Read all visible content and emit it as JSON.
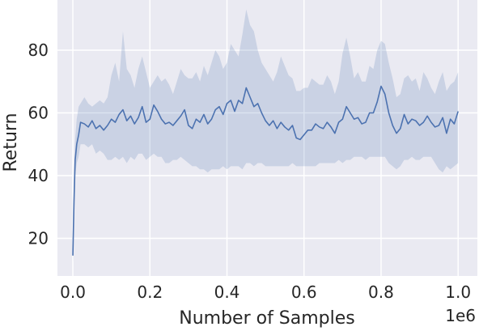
{
  "chart_data": {
    "type": "line",
    "xlabel": "Number of Samples",
    "ylabel": "Return",
    "x_offset_label": "1e6",
    "xlim": [
      -0.04,
      1.05
    ],
    "ylim": [
      8,
      96
    ],
    "xticks": [
      0.0,
      0.2,
      0.4,
      0.6,
      0.8,
      1.0
    ],
    "xtick_labels": [
      "0.0",
      "0.2",
      "0.4",
      "0.6",
      "0.8",
      "1.0"
    ],
    "yticks": [
      20,
      40,
      60,
      80
    ],
    "ytick_labels": [
      "20",
      "40",
      "60",
      "80"
    ],
    "grid": true,
    "background": "#eaeaf2",
    "line_color": "#4c72b0",
    "band_color": "#4c72b0",
    "series": [
      {
        "x": [
          0.0,
          0.003,
          0.006,
          0.01,
          0.015,
          0.02,
          0.03,
          0.04,
          0.05,
          0.06,
          0.07,
          0.08,
          0.09,
          0.1,
          0.11,
          0.12,
          0.13,
          0.14,
          0.15,
          0.16,
          0.17,
          0.18,
          0.19,
          0.2,
          0.21,
          0.22,
          0.23,
          0.24,
          0.25,
          0.26,
          0.27,
          0.28,
          0.29,
          0.3,
          0.31,
          0.32,
          0.33,
          0.34,
          0.35,
          0.36,
          0.37,
          0.38,
          0.39,
          0.4,
          0.41,
          0.42,
          0.43,
          0.44,
          0.45,
          0.46,
          0.47,
          0.48,
          0.49,
          0.5,
          0.51,
          0.52,
          0.53,
          0.54,
          0.55,
          0.56,
          0.57,
          0.58,
          0.59,
          0.6,
          0.61,
          0.62,
          0.63,
          0.64,
          0.65,
          0.66,
          0.67,
          0.68,
          0.69,
          0.7,
          0.71,
          0.72,
          0.73,
          0.74,
          0.75,
          0.76,
          0.77,
          0.78,
          0.79,
          0.8,
          0.81,
          0.82,
          0.83,
          0.84,
          0.85,
          0.86,
          0.87,
          0.88,
          0.89,
          0.9,
          0.91,
          0.92,
          0.93,
          0.94,
          0.95,
          0.96,
          0.97,
          0.98,
          0.99,
          1.0
        ],
        "mean": [
          14.5,
          32,
          45,
          50,
          53,
          57,
          56.5,
          55.5,
          57.5,
          55,
          56,
          54.5,
          56,
          58,
          57,
          59.5,
          61,
          57.5,
          59,
          56.5,
          58.5,
          62,
          57,
          58,
          62.5,
          60.5,
          58,
          56.5,
          57,
          56,
          57.5,
          59,
          61,
          56,
          55,
          58,
          57,
          59.5,
          56.5,
          58,
          61,
          62,
          59.5,
          63,
          64,
          60.5,
          64,
          63,
          68,
          65,
          62,
          63,
          60,
          57.5,
          56,
          57.5,
          55,
          57,
          55.5,
          54.5,
          56,
          52,
          51.5,
          53,
          54.5,
          54.5,
          56.5,
          55.5,
          55,
          57,
          55.5,
          53.5,
          57,
          58,
          62,
          60,
          58,
          58.5,
          56.5,
          57,
          60,
          60,
          63.5,
          68.5,
          66,
          60,
          56,
          53.5,
          55,
          59.5,
          56.5,
          58,
          57.5,
          56,
          57,
          59,
          57,
          55.5,
          56,
          58.5,
          53.5,
          58,
          56.5,
          60.5
        ],
        "upper": [
          16,
          40,
          52,
          58,
          62,
          63,
          65,
          63,
          62,
          63,
          64,
          63,
          65,
          72,
          76,
          70,
          86,
          74,
          72,
          68,
          74,
          78,
          73,
          68,
          70,
          72,
          70,
          71,
          69,
          66,
          70,
          74,
          72,
          71,
          71,
          73,
          70,
          75,
          72,
          76,
          80,
          78,
          74,
          76,
          82,
          80,
          78,
          85,
          93,
          88,
          86,
          80,
          76,
          74,
          72,
          70,
          73,
          78,
          75,
          72,
          71,
          67,
          67,
          68,
          68,
          71,
          70,
          69,
          69,
          72,
          70,
          66,
          70,
          79,
          84,
          78,
          71,
          73,
          70,
          70,
          75,
          74,
          80,
          83,
          82,
          76,
          71,
          65,
          66,
          71,
          72,
          70,
          71,
          67,
          73,
          71,
          68,
          66,
          70,
          73,
          67,
          69,
          70,
          73
        ],
        "lower": [
          12,
          24,
          40,
          44,
          46,
          50,
          50,
          49,
          50,
          47,
          48,
          47,
          45,
          45,
          46,
          45,
          46,
          44,
          46,
          45,
          47,
          47,
          45,
          46,
          47,
          46,
          46,
          44,
          44,
          45,
          45,
          46,
          45,
          44,
          43,
          43,
          42,
          42,
          41,
          42,
          42,
          42,
          43,
          42,
          43,
          43,
          43,
          42,
          44,
          44,
          43,
          44,
          44,
          43,
          43,
          43,
          43,
          43,
          43,
          43,
          44,
          43,
          43,
          43,
          43,
          43,
          43,
          44,
          44,
          44,
          44,
          44,
          45,
          44,
          45,
          45,
          46,
          46,
          46,
          45,
          46,
          46,
          46,
          46,
          46,
          44,
          43,
          42,
          43,
          45,
          45,
          46,
          45,
          45,
          46,
          46,
          46,
          44,
          42,
          41,
          43,
          42,
          43,
          44
        ]
      }
    ]
  }
}
